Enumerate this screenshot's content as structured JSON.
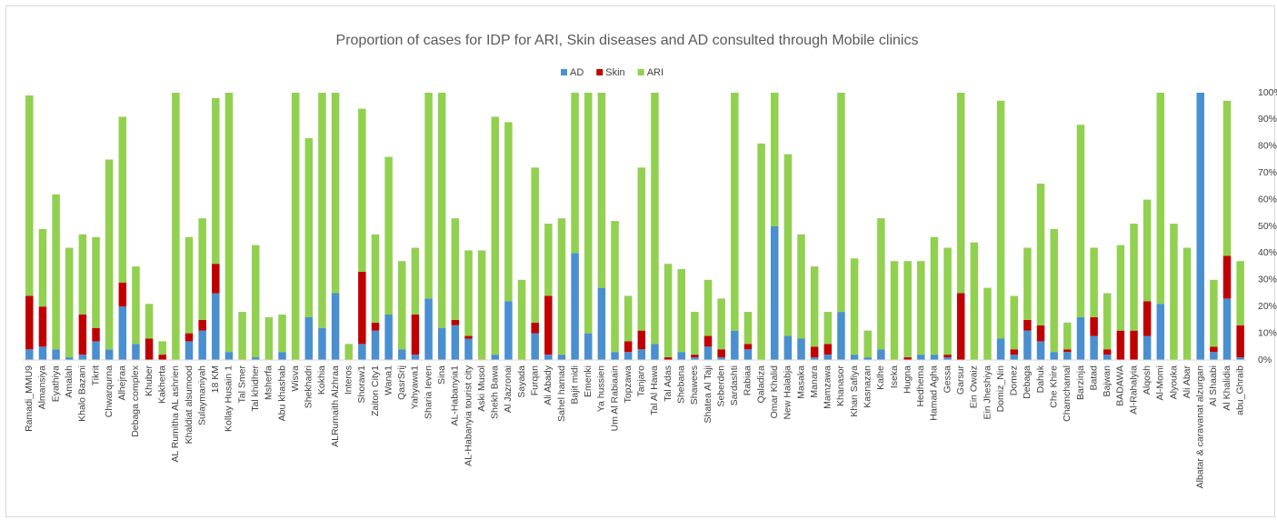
{
  "chart_data": {
    "type": "stacked-bar",
    "title": "Proportion of cases for IDP for ARI, Skin diseases and AD consulted through Mobile clinics",
    "categories": [
      "Ramadi_MMU9",
      "Almansiya",
      "Eyathiya",
      "Amalah",
      "Khalo Bazani",
      "Tikrit",
      "Chwarqurna",
      "Alhejraa",
      "Debaga complex",
      "Khuber",
      "Kakherta",
      "AL Rumitha AL ashrien",
      "Khaldiat alsumood",
      "Sulaymaniyah",
      "18 KM",
      "Kollay Husain 1",
      "Tal Smer",
      "Tal khidher",
      "Msherfa",
      "Abu khashab",
      "Wisva",
      "Shekhadri",
      "Kokhia",
      "ALRumaith Alzhraa",
      "Interos",
      "Shoraw1",
      "Zaiton City1",
      "Wana1",
      "QasrSrij",
      "Yahyawa1",
      "Sharia Ieven",
      "Sina",
      "AL-Habanyia1",
      "AL-Habanyia tourist city",
      "Aski Musol",
      "Shekh Bawa",
      "Al Jazronai",
      "Sayada",
      "Furqan",
      "Ali Abady",
      "Sahel hamad",
      "Bajit midi",
      "Emenki",
      "Ya hussien",
      "Um Al Rabiaain",
      "Topzawa",
      "Tanjaro",
      "Tal Al Hawa",
      "Tal Adas",
      "Shebana",
      "Shawees",
      "Shatea Al Taji",
      "Seberden",
      "Sardashti",
      "Rabiaa",
      "Qaladiza",
      "Omar Khalid",
      "New Halabja",
      "Masaka",
      "Manara",
      "Mamzawa",
      "Khanasor",
      "Khan Safiya",
      "Kasnazan",
      "Kalhe",
      "Iseka",
      "Hugna",
      "Hedhema",
      "Hamad Agha",
      "Gessa",
      "Garsur",
      "Ein Owaiz",
      "Ein Jheshiya",
      "Domiz_Nin",
      "Domez",
      "Debaga",
      "Dahuk",
      "Che Khire",
      "Chamchamal",
      "Barzinja",
      "Batad",
      "Bajwan",
      "BADAWA",
      "Al-Rahalyia",
      "Alqosh",
      "Al-Momi",
      "Alyouka",
      "Ali Abar",
      "Albatar & caravanat alzurgan",
      "Al Shaabi",
      "Al Khalidia",
      "abu_Ghraib"
    ],
    "series": [
      {
        "name": "AD",
        "color": "#4a8fd0",
        "values": [
          4,
          5,
          4,
          1,
          2,
          7,
          4,
          20,
          6,
          0,
          0,
          0,
          7,
          11,
          25,
          3,
          0,
          1,
          0,
          3,
          0,
          16,
          12,
          25,
          0,
          6,
          11,
          17,
          4,
          2,
          23,
          12,
          13,
          8,
          0,
          2,
          22,
          0,
          10,
          2,
          2,
          40,
          10,
          27,
          3,
          3,
          4,
          6,
          0,
          3,
          1,
          5,
          1,
          11,
          4,
          0,
          50,
          9,
          8,
          1,
          2,
          18,
          2,
          1,
          4,
          0,
          0,
          2,
          2,
          1,
          0,
          0,
          0,
          8,
          2,
          11,
          7,
          3,
          3,
          16,
          9,
          2,
          0,
          0,
          9,
          21,
          0,
          0,
          100,
          3,
          23,
          1
        ]
      },
      {
        "name": "Skin",
        "color": "#c00000",
        "values": [
          20,
          15,
          0,
          0,
          15,
          5,
          0,
          9,
          0,
          8,
          2,
          0,
          3,
          4,
          11,
          0,
          0,
          0,
          0,
          0,
          0,
          0,
          0,
          0,
          0,
          27,
          3,
          0,
          0,
          15,
          0,
          0,
          2,
          1,
          0,
          0,
          0,
          0,
          4,
          22,
          0,
          0,
          0,
          0,
          0,
          4,
          7,
          0,
          1,
          0,
          1,
          4,
          3,
          0,
          2,
          0,
          0,
          0,
          0,
          4,
          4,
          0,
          0,
          0,
          0,
          0,
          1,
          0,
          0,
          1,
          25,
          0,
          0,
          0,
          2,
          4,
          6,
          0,
          1,
          0,
          7,
          2,
          11,
          11,
          13,
          0,
          0,
          0,
          0,
          2,
          16,
          12
        ]
      },
      {
        "name": "ARI",
        "color": "#92d050",
        "values": [
          75,
          29,
          58,
          41,
          30,
          34,
          71,
          62,
          29,
          13,
          5,
          100,
          36,
          38,
          62,
          97,
          18,
          42,
          16,
          14,
          100,
          67,
          88,
          75,
          6,
          61,
          33,
          59,
          33,
          25,
          77,
          88,
          38,
          32,
          41,
          89,
          67,
          30,
          58,
          27,
          51,
          60,
          90,
          73,
          49,
          17,
          61,
          94,
          35,
          31,
          16,
          21,
          19,
          89,
          12,
          81,
          50,
          68,
          39,
          30,
          12,
          82,
          36,
          10,
          49,
          37,
          36,
          35,
          44,
          40,
          75,
          44,
          27,
          89,
          20,
          27,
          53,
          46,
          10,
          72,
          26,
          21,
          32,
          40,
          38,
          79,
          51,
          42,
          0,
          25,
          58,
          24
        ]
      }
    ],
    "ylim": [
      0,
      100
    ],
    "yticks": [
      {
        "value": 0,
        "label": "0%"
      },
      {
        "value": 10,
        "label": "10%"
      },
      {
        "value": 20,
        "label": "20%"
      },
      {
        "value": 30,
        "label": "30%"
      },
      {
        "value": 40,
        "label": "40%"
      },
      {
        "value": 50,
        "label": "50%"
      },
      {
        "value": 60,
        "label": "60%"
      },
      {
        "value": 70,
        "label": "70%"
      },
      {
        "value": 80,
        "label": "80%"
      },
      {
        "value": 90,
        "label": "90%"
      },
      {
        "value": 100,
        "label": "100%"
      }
    ],
    "y_axis_side": "right",
    "grid": false,
    "legend": "top"
  }
}
